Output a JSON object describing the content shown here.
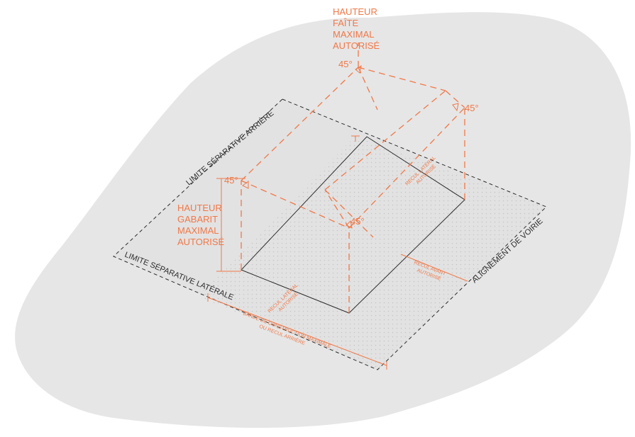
{
  "colors": {
    "background": "#ffffff",
    "blob": "#e6e6e6",
    "plot": "#e2e2e2",
    "dots": "#c4c4c4",
    "orange": "#f07848",
    "black": "#2b2b2b"
  },
  "labels": {
    "top_height": [
      "HAUTEUR",
      "FAÎTE",
      "MAXIMAL",
      "AUTORISÉ"
    ],
    "side_height": [
      "HAUTEUR",
      "GABARIT",
      "MAXIMAL",
      "AUTORISÉ"
    ],
    "angle_top": "45°",
    "angle_right": "45°",
    "angle_left": "45°",
    "angle_center": "45°",
    "limite_arriere": "LIMITE SÉPARATIVE ARRIÈRE",
    "limite_laterale": "LIMITE SÉPARATIVE LATÉRALE",
    "alignement": "ALIGNEMENT DE VOIRIE",
    "recul_lateral_right": [
      "RECUL LATÉRAL",
      "AUTORISÉ"
    ],
    "recul_lateral_left": [
      "RECUL LATÉRAL",
      "AUTORISÉ"
    ],
    "recul_avant": [
      "RECUL AVANT",
      "AUTORISÉ"
    ],
    "bande": [
      "BANDE DE CONSTRUCTION MAXIMALE",
      "OU RECUL ARRIÈRE"
    ]
  }
}
